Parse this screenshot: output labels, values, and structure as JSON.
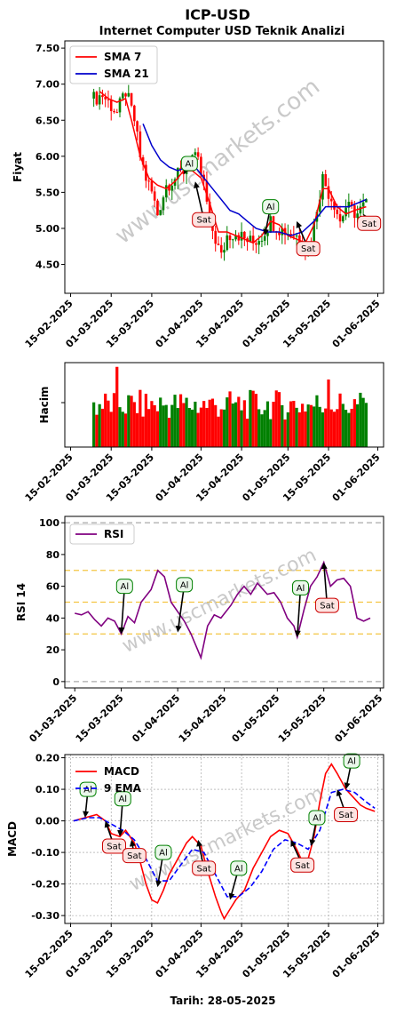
{
  "title": "ICP-USD",
  "subtitle": "Internet Computer USD Teknik Analizi",
  "watermark": "www.uscmarkets.com",
  "footer": "Tarih: 28-05-2025",
  "colors": {
    "up": "#008000",
    "down": "#ff0000",
    "sma7": "#ff0000",
    "sma21": "#0000cc",
    "rsi": "#800080",
    "macd": "#ff0000",
    "ema9": "#0000ff",
    "buy": "#008000",
    "sell": "#cc0000",
    "buyFill": "#eaf7ea",
    "sellFill": "#fde3e1"
  },
  "chart_data": [
    {
      "id": "price",
      "type": "candlestick",
      "ylabel": "Fiyat",
      "ylim": [
        4.1,
        7.6
      ],
      "yticks": [
        4.5,
        5.0,
        5.5,
        6.0,
        6.5,
        7.0,
        7.5
      ],
      "xrange": [
        "2025-02-13",
        "2025-06-03"
      ],
      "xticks": [
        "15-02-2025",
        "01-03-2025",
        "15-03-2025",
        "01-04-2025",
        "15-04-2025",
        "01-05-2025",
        "15-05-2025",
        "01-06-2025"
      ],
      "legend": [
        "SMA 7",
        "SMA 21"
      ],
      "close": [
        [
          "2025-02-23",
          6.8
        ],
        [
          "2025-02-26",
          6.85
        ],
        [
          "2025-03-01",
          6.7
        ],
        [
          "2025-03-03",
          6.6
        ],
        [
          "2025-03-06",
          6.9
        ],
        [
          "2025-03-09",
          6.5
        ],
        [
          "2025-03-11",
          6.0
        ],
        [
          "2025-03-13",
          5.7
        ],
        [
          "2025-03-15",
          5.5
        ],
        [
          "2025-03-17",
          5.2
        ],
        [
          "2025-03-20",
          5.6
        ],
        [
          "2025-03-23",
          5.7
        ],
        [
          "2025-03-26",
          5.8
        ],
        [
          "2025-03-29",
          6.0
        ],
        [
          "2025-03-31",
          5.9
        ],
        [
          "2025-04-02",
          5.6
        ],
        [
          "2025-04-04",
          5.1
        ],
        [
          "2025-04-06",
          4.85
        ],
        [
          "2025-04-08",
          4.6
        ],
        [
          "2025-04-10",
          4.9
        ],
        [
          "2025-04-13",
          4.95
        ],
        [
          "2025-04-16",
          4.85
        ],
        [
          "2025-04-19",
          4.8
        ],
        [
          "2025-04-22",
          4.9
        ],
        [
          "2025-04-25",
          5.1
        ],
        [
          "2025-04-28",
          5.0
        ],
        [
          "2025-05-01",
          4.95
        ],
        [
          "2025-05-04",
          4.9
        ],
        [
          "2025-05-07",
          4.7
        ],
        [
          "2025-05-09",
          4.8
        ],
        [
          "2025-05-11",
          5.3
        ],
        [
          "2025-05-13",
          5.7
        ],
        [
          "2025-05-15",
          5.5
        ],
        [
          "2025-05-17",
          5.35
        ],
        [
          "2025-05-19",
          5.1
        ],
        [
          "2025-05-21",
          5.3
        ],
        [
          "2025-05-23",
          5.25
        ],
        [
          "2025-05-25",
          5.2
        ],
        [
          "2025-05-28",
          5.35
        ]
      ],
      "sma7": [
        [
          "2025-02-25",
          6.9
        ],
        [
          "2025-02-28",
          6.8
        ],
        [
          "2025-03-03",
          6.75
        ],
        [
          "2025-03-06",
          6.8
        ],
        [
          "2025-03-08",
          6.5
        ],
        [
          "2025-03-11",
          6.0
        ],
        [
          "2025-03-14",
          5.7
        ],
        [
          "2025-03-17",
          5.6
        ],
        [
          "2025-03-20",
          5.55
        ],
        [
          "2025-03-23",
          5.65
        ],
        [
          "2025-03-26",
          5.8
        ],
        [
          "2025-03-29",
          5.8
        ],
        [
          "2025-04-01",
          5.7
        ],
        [
          "2025-04-04",
          5.35
        ],
        [
          "2025-04-07",
          4.95
        ],
        [
          "2025-04-10",
          4.95
        ],
        [
          "2025-04-13",
          4.9
        ],
        [
          "2025-04-16",
          4.85
        ],
        [
          "2025-04-19",
          4.8
        ],
        [
          "2025-04-22",
          4.9
        ],
        [
          "2025-04-25",
          5.1
        ],
        [
          "2025-04-28",
          5.05
        ],
        [
          "2025-05-01",
          4.9
        ],
        [
          "2025-05-04",
          4.85
        ],
        [
          "2025-05-07",
          4.8
        ],
        [
          "2025-05-10",
          5.05
        ],
        [
          "2025-05-13",
          5.55
        ],
        [
          "2025-05-15",
          5.55
        ],
        [
          "2025-05-18",
          5.3
        ],
        [
          "2025-05-21",
          5.2
        ],
        [
          "2025-05-24",
          5.25
        ],
        [
          "2025-05-28",
          5.3
        ]
      ],
      "sma21": [
        [
          "2025-03-12",
          6.45
        ],
        [
          "2025-03-15",
          6.15
        ],
        [
          "2025-03-18",
          5.95
        ],
        [
          "2025-03-21",
          5.85
        ],
        [
          "2025-03-24",
          5.8
        ],
        [
          "2025-03-27",
          5.85
        ],
        [
          "2025-03-30",
          5.85
        ],
        [
          "2025-04-02",
          5.7
        ],
        [
          "2025-04-05",
          5.55
        ],
        [
          "2025-04-08",
          5.4
        ],
        [
          "2025-04-11",
          5.25
        ],
        [
          "2025-04-14",
          5.2
        ],
        [
          "2025-04-17",
          5.1
        ],
        [
          "2025-04-20",
          5.0
        ],
        [
          "2025-04-24",
          4.95
        ],
        [
          "2025-04-28",
          4.95
        ],
        [
          "2025-05-02",
          4.9
        ],
        [
          "2025-05-06",
          4.95
        ],
        [
          "2025-05-10",
          5.1
        ],
        [
          "2025-05-14",
          5.3
        ],
        [
          "2025-05-18",
          5.3
        ],
        [
          "2025-05-22",
          5.3
        ],
        [
          "2025-05-28",
          5.4
        ]
      ],
      "signals": [
        {
          "label": "Al",
          "kind": "buy",
          "date": "2025-03-26",
          "value": 5.75,
          "label_date": "2025-03-28",
          "label_value": 5.9
        },
        {
          "label": "Sat",
          "kind": "sell",
          "date": "2025-03-30",
          "value": 5.65,
          "label_date": "2025-04-02",
          "label_value": 5.12
        },
        {
          "label": "Al",
          "kind": "buy",
          "date": "2025-04-23",
          "value": 4.9,
          "label_date": "2025-04-25",
          "label_value": 5.3
        },
        {
          "label": "Sat",
          "kind": "sell",
          "date": "2025-05-04",
          "value": 5.1,
          "label_date": "2025-05-08",
          "label_value": 4.72
        },
        {
          "label": "Sat",
          "kind": "sell",
          "date": "2025-05-27",
          "value": 5.2,
          "label_date": "2025-05-29",
          "label_value": 5.07
        }
      ]
    },
    {
      "id": "volume",
      "type": "bar",
      "ylabel": "Hacim",
      "xrange": [
        "2025-02-13",
        "2025-06-03"
      ],
      "xticks": [
        "15-02-2025",
        "01-03-2025",
        "15-03-2025",
        "01-04-2025",
        "15-04-2025",
        "01-05-2025",
        "15-05-2025",
        "01-06-2025"
      ]
    },
    {
      "id": "rsi",
      "type": "line",
      "ylabel": "RSI 14",
      "ylim": [
        -4,
        104
      ],
      "yticks": [
        0,
        20,
        40,
        60,
        80,
        100
      ],
      "hlines": [
        0,
        30,
        50,
        70,
        100
      ],
      "xrange": [
        "2025-02-26",
        "2025-06-02"
      ],
      "xticks": [
        "01-03-2025",
        "15-03-2025",
        "01-04-2025",
        "15-04-2025",
        "01-05-2025",
        "15-05-2025",
        "01-06-2025"
      ],
      "legend": [
        "RSI"
      ],
      "values": [
        [
          "2025-03-01",
          43
        ],
        [
          "2025-03-03",
          42
        ],
        [
          "2025-03-05",
          44
        ],
        [
          "2025-03-07",
          39
        ],
        [
          "2025-03-09",
          35
        ],
        [
          "2025-03-11",
          40
        ],
        [
          "2025-03-13",
          38
        ],
        [
          "2025-03-15",
          30
        ],
        [
          "2025-03-17",
          41
        ],
        [
          "2025-03-19",
          37
        ],
        [
          "2025-03-21",
          50
        ],
        [
          "2025-03-24",
          58
        ],
        [
          "2025-03-26",
          70
        ],
        [
          "2025-03-28",
          66
        ],
        [
          "2025-03-30",
          50
        ],
        [
          "2025-04-01",
          44
        ],
        [
          "2025-04-03",
          38
        ],
        [
          "2025-04-05",
          30
        ],
        [
          "2025-04-07",
          20
        ],
        [
          "2025-04-08",
          15
        ],
        [
          "2025-04-10",
          35
        ],
        [
          "2025-04-12",
          42
        ],
        [
          "2025-04-14",
          40
        ],
        [
          "2025-04-17",
          48
        ],
        [
          "2025-04-19",
          55
        ],
        [
          "2025-04-21",
          60
        ],
        [
          "2025-04-23",
          55
        ],
        [
          "2025-04-25",
          62
        ],
        [
          "2025-04-28",
          55
        ],
        [
          "2025-04-30",
          56
        ],
        [
          "2025-05-02",
          50
        ],
        [
          "2025-05-04",
          40
        ],
        [
          "2025-05-06",
          35
        ],
        [
          "2025-05-07",
          28
        ],
        [
          "2025-05-09",
          45
        ],
        [
          "2025-05-11",
          60
        ],
        [
          "2025-05-13",
          66
        ],
        [
          "2025-05-15",
          75
        ],
        [
          "2025-05-17",
          60
        ],
        [
          "2025-05-19",
          64
        ],
        [
          "2025-05-21",
          65
        ],
        [
          "2025-05-23",
          60
        ],
        [
          "2025-05-25",
          40
        ],
        [
          "2025-05-27",
          38
        ],
        [
          "2025-05-29",
          40
        ]
      ],
      "signals": [
        {
          "label": "Al",
          "kind": "buy",
          "date": "2025-03-15",
          "value": 30,
          "label_date": "2025-03-16",
          "label_value": 60
        },
        {
          "label": "Al",
          "kind": "buy",
          "date": "2025-04-01",
          "value": 31,
          "label_date": "2025-04-03",
          "label_value": 61
        },
        {
          "label": "Al",
          "kind": "buy",
          "date": "2025-05-07",
          "value": 28,
          "label_date": "2025-05-08",
          "label_value": 59
        },
        {
          "label": "Sat",
          "kind": "sell",
          "date": "2025-05-15",
          "value": 75,
          "label_date": "2025-05-16",
          "label_value": 48
        }
      ]
    },
    {
      "id": "macd",
      "type": "line",
      "ylabel": "MACD",
      "ylim": [
        -0.325,
        0.21
      ],
      "yticks": [
        -0.3,
        -0.2,
        -0.1,
        0.0,
        0.1,
        0.2
      ],
      "xrange": [
        "2025-02-13",
        "2025-06-03"
      ],
      "xticks": [
        "15-02-2025",
        "01-03-2025",
        "15-03-2025",
        "01-04-2025",
        "15-04-2025",
        "01-05-2025",
        "15-05-2025",
        "01-06-2025"
      ],
      "legend": [
        "MACD",
        "9 EMA"
      ],
      "macd": [
        [
          "2025-02-16",
          0.0
        ],
        [
          "2025-02-20",
          0.01
        ],
        [
          "2025-02-24",
          0.02
        ],
        [
          "2025-02-27",
          0.0
        ],
        [
          "2025-03-01",
          -0.04
        ],
        [
          "2025-03-04",
          -0.05
        ],
        [
          "2025-03-06",
          -0.03
        ],
        [
          "2025-03-09",
          -0.07
        ],
        [
          "2025-03-11",
          -0.13
        ],
        [
          "2025-03-13",
          -0.2
        ],
        [
          "2025-03-15",
          -0.25
        ],
        [
          "2025-03-17",
          -0.26
        ],
        [
          "2025-03-19",
          -0.22
        ],
        [
          "2025-03-21",
          -0.17
        ],
        [
          "2025-03-24",
          -0.12
        ],
        [
          "2025-03-27",
          -0.07
        ],
        [
          "2025-03-29",
          -0.05
        ],
        [
          "2025-04-01",
          -0.08
        ],
        [
          "2025-04-03",
          -0.15
        ],
        [
          "2025-04-06",
          -0.24
        ],
        [
          "2025-04-08",
          -0.29
        ],
        [
          "2025-04-09",
          -0.31
        ],
        [
          "2025-04-11",
          -0.28
        ],
        [
          "2025-04-13",
          -0.25
        ],
        [
          "2025-04-16",
          -0.22
        ],
        [
          "2025-04-19",
          -0.15
        ],
        [
          "2025-04-22",
          -0.1
        ],
        [
          "2025-04-25",
          -0.05
        ],
        [
          "2025-04-28",
          -0.03
        ],
        [
          "2025-05-01",
          -0.04
        ],
        [
          "2025-05-04",
          -0.09
        ],
        [
          "2025-05-06",
          -0.13
        ],
        [
          "2025-05-08",
          -0.12
        ],
        [
          "2025-05-10",
          -0.05
        ],
        [
          "2025-05-12",
          0.06
        ],
        [
          "2025-05-14",
          0.15
        ],
        [
          "2025-05-16",
          0.18
        ],
        [
          "2025-05-18",
          0.15
        ],
        [
          "2025-05-21",
          0.1
        ],
        [
          "2025-05-24",
          0.07
        ],
        [
          "2025-05-26",
          0.05
        ],
        [
          "2025-05-28",
          0.04
        ],
        [
          "2025-05-31",
          0.03
        ]
      ],
      "ema9": [
        [
          "2025-02-16",
          0.0
        ],
        [
          "2025-02-21",
          0.01
        ],
        [
          "2025-02-25",
          0.01
        ],
        [
          "2025-03-01",
          -0.01
        ],
        [
          "2025-03-05",
          -0.03
        ],
        [
          "2025-03-09",
          -0.06
        ],
        [
          "2025-03-13",
          -0.12
        ],
        [
          "2025-03-17",
          -0.19
        ],
        [
          "2025-03-21",
          -0.19
        ],
        [
          "2025-03-25",
          -0.14
        ],
        [
          "2025-03-29",
          -0.09
        ],
        [
          "2025-04-02",
          -0.1
        ],
        [
          "2025-04-06",
          -0.17
        ],
        [
          "2025-04-10",
          -0.24
        ],
        [
          "2025-04-14",
          -0.24
        ],
        [
          "2025-04-18",
          -0.21
        ],
        [
          "2025-04-22",
          -0.16
        ],
        [
          "2025-04-26",
          -0.09
        ],
        [
          "2025-04-30",
          -0.06
        ],
        [
          "2025-05-04",
          -0.07
        ],
        [
          "2025-05-08",
          -0.09
        ],
        [
          "2025-05-12",
          -0.03
        ],
        [
          "2025-05-16",
          0.09
        ],
        [
          "2025-05-20",
          0.1
        ],
        [
          "2025-05-24",
          0.09
        ],
        [
          "2025-05-28",
          0.06
        ],
        [
          "2025-05-31",
          0.04
        ]
      ],
      "signals": [
        {
          "label": "Al",
          "kind": "buy",
          "date": "2025-02-20",
          "value": 0.01,
          "label_date": "2025-02-21",
          "label_value": 0.1
        },
        {
          "label": "Sat",
          "kind": "sell",
          "date": "2025-02-27",
          "value": 0.0,
          "label_date": "2025-03-02",
          "label_value": -0.08
        },
        {
          "label": "Al",
          "kind": "buy",
          "date": "2025-03-04",
          "value": -0.05,
          "label_date": "2025-03-05",
          "label_value": 0.07
        },
        {
          "label": "Sat",
          "kind": "sell",
          "date": "2025-03-08",
          "value": -0.06,
          "label_date": "2025-03-09",
          "label_value": -0.11
        },
        {
          "label": "Al",
          "kind": "buy",
          "date": "2025-03-17",
          "value": -0.21,
          "label_date": "2025-03-19",
          "label_value": -0.1
        },
        {
          "label": "Sat",
          "kind": "sell",
          "date": "2025-03-31",
          "value": -0.06,
          "label_date": "2025-04-02",
          "label_value": -0.15
        },
        {
          "label": "Al",
          "kind": "buy",
          "date": "2025-04-11",
          "value": -0.25,
          "label_date": "2025-04-14",
          "label_value": -0.15
        },
        {
          "label": "Sat",
          "kind": "sell",
          "date": "2025-05-02",
          "value": -0.06,
          "label_date": "2025-05-06",
          "label_value": -0.14
        },
        {
          "label": "Al",
          "kind": "buy",
          "date": "2025-05-09",
          "value": -0.08,
          "label_date": "2025-05-11",
          "label_value": 0.01
        },
        {
          "label": "Al",
          "kind": "buy",
          "date": "2025-05-21",
          "value": 0.1,
          "label_date": "2025-05-23",
          "label_value": 0.19
        },
        {
          "label": "Sat",
          "kind": "sell",
          "date": "2025-05-18",
          "value": 0.1,
          "label_date": "2025-05-21",
          "label_value": 0.02
        }
      ]
    }
  ]
}
